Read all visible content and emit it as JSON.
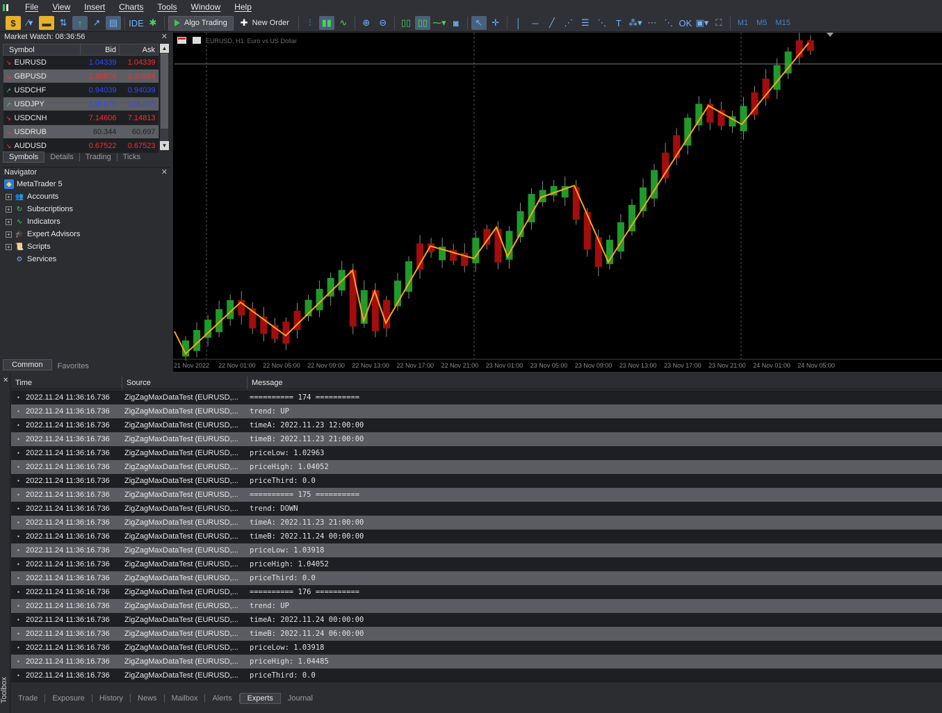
{
  "menu": [
    "File",
    "View",
    "Insert",
    "Charts",
    "Tools",
    "Window",
    "Help"
  ],
  "toolbar": {
    "ide_label": "IDE",
    "algo_label": "Algo Trading",
    "new_order_label": "New Order",
    "timeframes": [
      "M1",
      "M5",
      "M15"
    ]
  },
  "market_watch": {
    "title": "Market Watch: 08:36:56",
    "headers": {
      "symbol": "Symbol",
      "bid": "Bid",
      "ask": "Ask"
    },
    "rows": [
      {
        "symbol": "EURUSD",
        "bid": "1.04339",
        "ask": "1.04339",
        "dir": "down",
        "shade": "dark",
        "bidc": "blue",
        "askc": "red"
      },
      {
        "symbol": "GBPUSD",
        "bid": "1.20879",
        "ask": "1.20884",
        "dir": "down",
        "shade": "light",
        "bidc": "red",
        "askc": "red"
      },
      {
        "symbol": "USDCHF",
        "bid": "0.94039",
        "ask": "0.94039",
        "dir": "up",
        "shade": "dark",
        "bidc": "blue",
        "askc": "blue"
      },
      {
        "symbol": "USDJPY",
        "bid": "138.875",
        "ask": "138.875",
        "dir": "up",
        "shade": "light",
        "bidc": "blue",
        "askc": "blue"
      },
      {
        "symbol": "USDCNH",
        "bid": "7.14606",
        "ask": "7.14813",
        "dir": "down",
        "shade": "dark",
        "bidc": "red",
        "askc": "red"
      },
      {
        "symbol": "USDRUB",
        "bid": "60.344",
        "ask": "60.697",
        "dir": "down",
        "shade": "light",
        "bidc": "dark",
        "askc": "dark"
      },
      {
        "symbol": "AUDUSD",
        "bid": "0.67522",
        "ask": "0.67523",
        "dir": "down",
        "shade": "dark",
        "bidc": "red",
        "askc": "red"
      }
    ],
    "tabs": [
      "Symbols",
      "Details",
      "Trading",
      "Ticks"
    ]
  },
  "navigator": {
    "title": "Navigator",
    "root": "MetaTrader 5",
    "items": [
      "Accounts",
      "Subscriptions",
      "Indicators",
      "Expert Advisors",
      "Scripts",
      "Services"
    ],
    "tabs": [
      "Common",
      "Favorites"
    ]
  },
  "chart": {
    "label": "EURUSD, H1:  Euro vs US Dollar",
    "time_labels": [
      "21 Nov 2022",
      "22 Nov 01:00",
      "22 Nov 05:00",
      "22 Nov 09:00",
      "22 Nov 13:00",
      "22 Nov 17:00",
      "22 Nov 21:00",
      "23 Nov 01:00",
      "23 Nov 05:00",
      "23 Nov 09:00",
      "23 Nov 13:00",
      "23 Nov 17:00",
      "23 Nov 21:00",
      "24 Nov 01:00",
      "24 Nov 05:00"
    ],
    "colors": {
      "bull": "#1f9b2a",
      "bear": "#a30d0d",
      "zigzag": "#ffa31a",
      "background": "#000000"
    }
  },
  "toolbox": {
    "label": "Toolbox",
    "headers": {
      "time": "Time",
      "source": "Source",
      "message": "Message"
    },
    "rows": [
      {
        "time": "2022.11.24 11:36:16.736",
        "source": "ZigZagMaxDataTest (EURUSD,...",
        "message": "========== 174 =========="
      },
      {
        "time": "2022.11.24 11:36:16.736",
        "source": "ZigZagMaxDataTest (EURUSD,...",
        "message": "trend: UP"
      },
      {
        "time": "2022.11.24 11:36:16.736",
        "source": "ZigZagMaxDataTest (EURUSD,...",
        "message": "timeA: 2022.11.23 12:00:00"
      },
      {
        "time": "2022.11.24 11:36:16.736",
        "source": "ZigZagMaxDataTest (EURUSD,...",
        "message": "timeB: 2022.11.23 21:00:00"
      },
      {
        "time": "2022.11.24 11:36:16.736",
        "source": "ZigZagMaxDataTest (EURUSD,...",
        "message": "priceLow: 1.02963"
      },
      {
        "time": "2022.11.24 11:36:16.736",
        "source": "ZigZagMaxDataTest (EURUSD,...",
        "message": "priceHigh: 1.04052"
      },
      {
        "time": "2022.11.24 11:36:16.736",
        "source": "ZigZagMaxDataTest (EURUSD,...",
        "message": "priceThird: 0.0"
      },
      {
        "time": "2022.11.24 11:36:16.736",
        "source": "ZigZagMaxDataTest (EURUSD,...",
        "message": "========== 175 =========="
      },
      {
        "time": "2022.11.24 11:36:16.736",
        "source": "ZigZagMaxDataTest (EURUSD,...",
        "message": "trend: DOWN"
      },
      {
        "time": "2022.11.24 11:36:16.736",
        "source": "ZigZagMaxDataTest (EURUSD,...",
        "message": "timeA: 2022.11.23 21:00:00"
      },
      {
        "time": "2022.11.24 11:36:16.736",
        "source": "ZigZagMaxDataTest (EURUSD,...",
        "message": "timeB: 2022.11.24 00:00:00"
      },
      {
        "time": "2022.11.24 11:36:16.736",
        "source": "ZigZagMaxDataTest (EURUSD,...",
        "message": "priceLow: 1.03918"
      },
      {
        "time": "2022.11.24 11:36:16.736",
        "source": "ZigZagMaxDataTest (EURUSD,...",
        "message": "priceHigh: 1.04052"
      },
      {
        "time": "2022.11.24 11:36:16.736",
        "source": "ZigZagMaxDataTest (EURUSD,...",
        "message": "priceThird: 0.0"
      },
      {
        "time": "2022.11.24 11:36:16.736",
        "source": "ZigZagMaxDataTest (EURUSD,...",
        "message": "========== 176 =========="
      },
      {
        "time": "2022.11.24 11:36:16.736",
        "source": "ZigZagMaxDataTest (EURUSD,...",
        "message": "trend: UP"
      },
      {
        "time": "2022.11.24 11:36:16.736",
        "source": "ZigZagMaxDataTest (EURUSD,...",
        "message": "timeA: 2022.11.24 00:00:00"
      },
      {
        "time": "2022.11.24 11:36:16.736",
        "source": "ZigZagMaxDataTest (EURUSD,...",
        "message": "timeB: 2022.11.24 06:00:00"
      },
      {
        "time": "2022.11.24 11:36:16.736",
        "source": "ZigZagMaxDataTest (EURUSD,...",
        "message": "priceLow: 1.03918"
      },
      {
        "time": "2022.11.24 11:36:16.736",
        "source": "ZigZagMaxDataTest (EURUSD,...",
        "message": "priceHigh: 1.04485"
      },
      {
        "time": "2022.11.24 11:36:16.736",
        "source": "ZigZagMaxDataTest (EURUSD,...",
        "message": "priceThird: 0.0"
      }
    ],
    "tabs": [
      "Trade",
      "Exposure",
      "History",
      "News",
      "Mailbox",
      "Alerts",
      "Experts",
      "Journal"
    ],
    "active_tab": "Experts"
  }
}
